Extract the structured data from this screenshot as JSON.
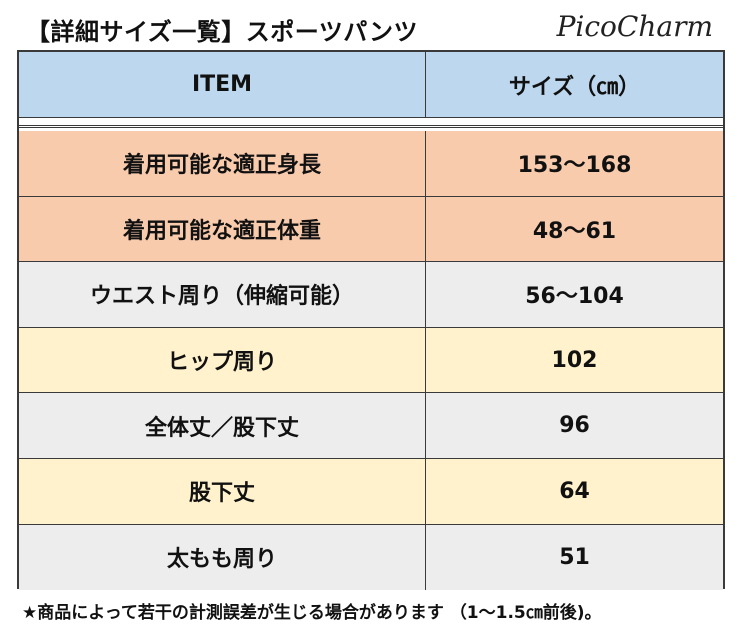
{
  "header": {
    "title": "【詳細サイズ一覧】スポーツパンツ",
    "brand": "PicoCharm"
  },
  "table": {
    "columns": {
      "item": "ITEM",
      "size": "サイズ（㎝）"
    },
    "rows": [
      {
        "item": "着用可能な適正身長",
        "size": "153～168",
        "color": "#f8cbad"
      },
      {
        "item": "着用可能な適正体重",
        "size": "48～61",
        "color": "#f8cbad"
      },
      {
        "item": "ウエスト周り（伸縮可能）",
        "size": "56～104",
        "color": "#ededed"
      },
      {
        "item": "ヒップ周り",
        "size": "102",
        "color": "#fff2cc"
      },
      {
        "item": "全体丈／股下丈",
        "size": "96",
        "color": "#ededed"
      },
      {
        "item": "股下丈",
        "size": "64",
        "color": "#fff2cc"
      },
      {
        "item": "太もも周り",
        "size": "51",
        "color": "#ededed"
      }
    ]
  },
  "footnote": "★商品によって若干の計測誤差が生じる場合があります （1～1.5㎝前後)。"
}
